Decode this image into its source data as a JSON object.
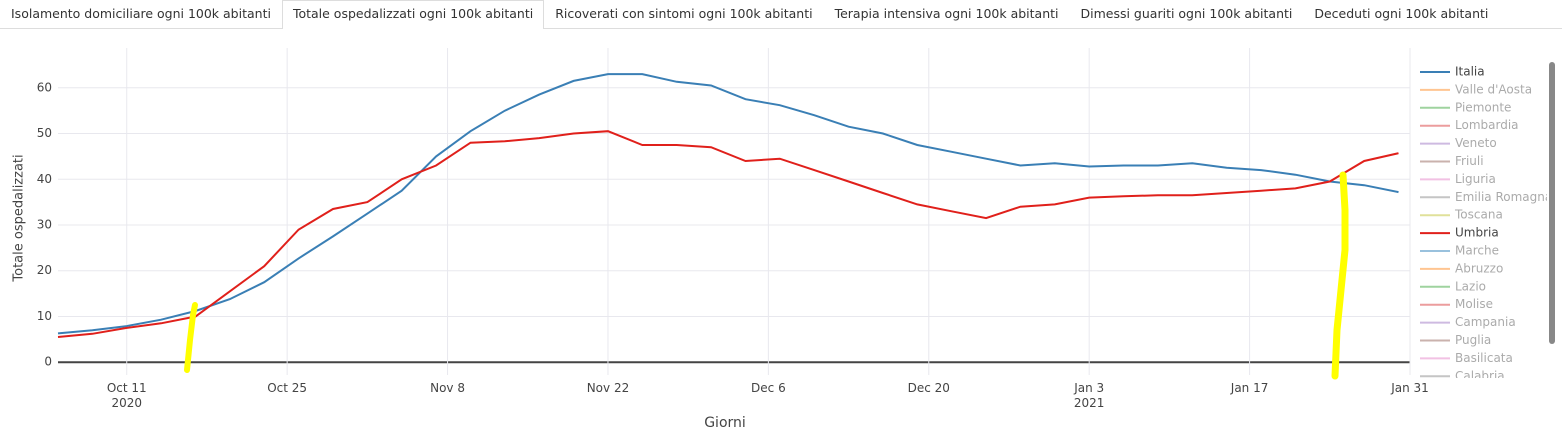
{
  "tabs": {
    "items": [
      "Isolamento domiciliare ogni 100k abitanti",
      "Totale ospedalizzati ogni 100k abitanti",
      "Ricoverati con sintomi ogni 100k abitanti",
      "Terapia intensiva ogni 100k abitanti",
      "Dimessi guariti ogni 100k abitanti",
      "Deceduti ogni 100k abitanti"
    ],
    "active": 1
  },
  "chart_data": {
    "type": "line",
    "xlabel": "Giorni",
    "ylabel": "Totale ospedalizzati",
    "x": [
      "2020-10-05",
      "2020-10-08",
      "2020-10-11",
      "2020-10-14",
      "2020-10-17",
      "2020-10-20",
      "2020-10-23",
      "2020-10-26",
      "2020-10-29",
      "2020-11-01",
      "2020-11-04",
      "2020-11-07",
      "2020-11-10",
      "2020-11-13",
      "2020-11-16",
      "2020-11-19",
      "2020-11-22",
      "2020-11-25",
      "2020-11-28",
      "2020-12-01",
      "2020-12-04",
      "2020-12-07",
      "2020-12-10",
      "2020-12-13",
      "2020-12-16",
      "2020-12-19",
      "2020-12-22",
      "2020-12-25",
      "2020-12-28",
      "2020-12-31",
      "2021-01-03",
      "2021-01-06",
      "2021-01-09",
      "2021-01-12",
      "2021-01-15",
      "2021-01-18",
      "2021-01-21",
      "2021-01-24",
      "2021-01-27",
      "2021-01-30"
    ],
    "xlim": [
      "2020-10-05",
      "2021-01-31"
    ],
    "xticks": [
      {
        "value": "2020-10-11",
        "label": "Oct 11\n2020"
      },
      {
        "value": "2020-10-25",
        "label": "Oct 25"
      },
      {
        "value": "2020-11-08",
        "label": "Nov 8"
      },
      {
        "value": "2020-11-22",
        "label": "Nov 22"
      },
      {
        "value": "2020-12-06",
        "label": "Dec 6"
      },
      {
        "value": "2020-12-20",
        "label": "Dec 20"
      },
      {
        "value": "2021-01-03",
        "label": "Jan 3\n2021"
      },
      {
        "value": "2021-01-17",
        "label": "Jan 17"
      },
      {
        "value": "2021-01-31",
        "label": "Jan 31"
      }
    ],
    "ylim": [
      -2.8,
      68.7
    ],
    "yticks": [
      0,
      10,
      20,
      30,
      40,
      50,
      60
    ],
    "grid": true,
    "series": [
      {
        "name": "Italia",
        "color": "#3a7fb5",
        "visible": true,
        "values": [
          6.3,
          7.0,
          7.9,
          9.3,
          11.2,
          13.8,
          17.5,
          22.7,
          27.5,
          32.5,
          37.5,
          45,
          50.5,
          55,
          58.5,
          61.5,
          63,
          63,
          61.3,
          60.5,
          57.5,
          56.2,
          54,
          51.5,
          50,
          47.5,
          46,
          44.5,
          43,
          43.5,
          42.8,
          43,
          43,
          43.5,
          42.5,
          42,
          41,
          39.5,
          38.7,
          37.2
        ]
      },
      {
        "name": "Valle d'Aosta",
        "color": "#ff7f0e",
        "visible": false
      },
      {
        "name": "Piemonte",
        "color": "#2ca02c",
        "visible": false
      },
      {
        "name": "Lombardia",
        "color": "#d62728",
        "visible": false
      },
      {
        "name": "Veneto",
        "color": "#9467bd",
        "visible": false
      },
      {
        "name": "Friuli",
        "color": "#8c564b",
        "visible": false
      },
      {
        "name": "Liguria",
        "color": "#e377c2",
        "visible": false
      },
      {
        "name": "Emilia Romagna",
        "color": "#7f7f7f",
        "visible": false
      },
      {
        "name": "Toscana",
        "color": "#bcbd22",
        "visible": false
      },
      {
        "name": "Umbria",
        "color": "#e0201b",
        "visible": true,
        "values": [
          5.5,
          6.2,
          7.5,
          8.5,
          10,
          15.5,
          21,
          29,
          33.5,
          35,
          40,
          43,
          48,
          48.3,
          49,
          50,
          50.5,
          47.5,
          47.5,
          47,
          44,
          44.5,
          42,
          39.5,
          37,
          34.5,
          33,
          31.5,
          34,
          34.5,
          36,
          36.3,
          36.5,
          36.5,
          37,
          37.5,
          38,
          39.5,
          44,
          45.7
        ]
      },
      {
        "name": "Marche",
        "color": "#1f77b4",
        "visible": false
      },
      {
        "name": "Abruzzo",
        "color": "#ff7f0e",
        "visible": false
      },
      {
        "name": "Lazio",
        "color": "#2ca02c",
        "visible": false
      },
      {
        "name": "Molise",
        "color": "#d62728",
        "visible": false
      },
      {
        "name": "Campania",
        "color": "#9467bd",
        "visible": false
      },
      {
        "name": "Puglia",
        "color": "#8c564b",
        "visible": false
      },
      {
        "name": "Basilicata",
        "color": "#e377c2",
        "visible": false
      },
      {
        "name": "Calabria",
        "color": "#7f7f7f",
        "visible": false
      }
    ]
  }
}
